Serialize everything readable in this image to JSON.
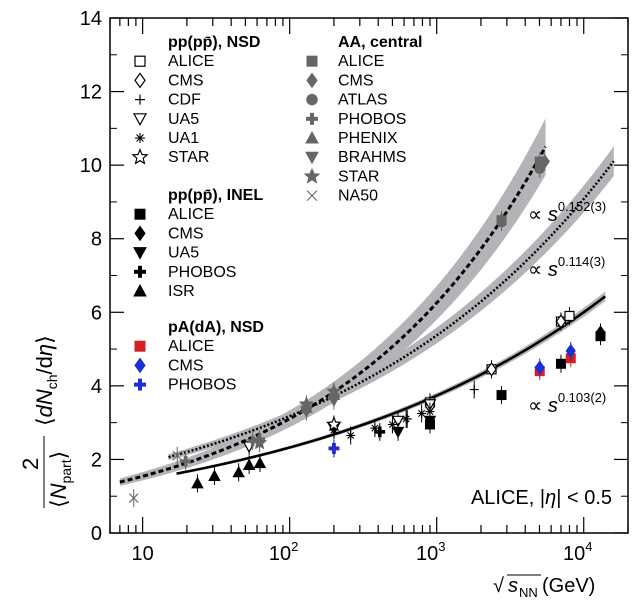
{
  "chart_data": {
    "type": "scatter",
    "x_scale": "log",
    "xlim": [
      6,
      20000
    ],
    "ylim": [
      0,
      14
    ],
    "x_ticks": [
      10,
      100,
      1000,
      10000
    ],
    "x_tick_labels": [
      {
        "base": "10",
        "exp": ""
      },
      {
        "base": "10",
        "exp": "2"
      },
      {
        "base": "10",
        "exp": "3"
      },
      {
        "base": "10",
        "exp": "4"
      }
    ],
    "y_ticks": [
      0,
      2,
      4,
      6,
      8,
      10,
      12,
      14
    ],
    "y_tick_labels": [
      "0",
      "2",
      "4",
      "6",
      "8",
      "10",
      "12",
      "14"
    ],
    "xlabel": {
      "prefix": "√",
      "var": "s",
      "sub": "NN",
      "unit": " (GeV)"
    },
    "ylabel": {
      "frac_num": "2",
      "frac_den_var": "N",
      "frac_den_sub": "part",
      "mid": "dN",
      "mid_sub": "ch",
      "tail": "/d",
      "eta": "η"
    },
    "annotation": {
      "prefix": "ALICE, |",
      "eta": "η",
      "suffix": "| < 0.5"
    },
    "legend_groups": [
      {
        "title": "pp(pp̄), NSD",
        "entries": [
          "ALICE",
          "CMS",
          "CDF",
          "UA5",
          "UA1",
          "STAR"
        ]
      },
      {
        "title": "pp(pp̄), INEL",
        "entries": [
          "ALICE",
          "CMS",
          "UA5",
          "PHOBOS",
          "ISR"
        ]
      },
      {
        "title": "pA(dA), NSD",
        "entries": [
          "ALICE",
          "CMS",
          "PHOBOS"
        ]
      },
      {
        "title": "AA, central",
        "entries": [
          "ALICE",
          "CMS",
          "ATLAS",
          "PHOBOS",
          "PHENIX",
          "BRAHMS",
          "STAR",
          "NA50"
        ]
      }
    ],
    "fits": [
      {
        "name": "AA, central",
        "label_prefix": "∝ ",
        "var": "s",
        "exponent": "0.152(3)",
        "style": "dashed",
        "a": 0.766,
        "b": 0.304,
        "x_range": [
          7,
          5500
        ],
        "band": 0.22
      },
      {
        "name": "pp(pp̄), NSD",
        "label_prefix": "∝ ",
        "var": "s",
        "exponent": "0.114(3)",
        "style": "dotted",
        "a": 1.112,
        "b": 0.228,
        "x_range": [
          15,
          16000
        ],
        "band": 0.12
      },
      {
        "name": "pp(pp̄), INEL",
        "label_prefix": "∝ ",
        "var": "s",
        "exponent": "0.103(2)",
        "style": "solid",
        "a": 0.9,
        "b": 0.206,
        "x_range": [
          17,
          14000
        ],
        "band": 0.06
      }
    ],
    "series": [
      {
        "name": "pp NSD ALICE",
        "marker": "open-square",
        "color": "#000000",
        "points": [
          [
            900,
            3.55
          ],
          [
            2360,
            4.45
          ],
          [
            7000,
            5.75
          ],
          [
            8000,
            5.9
          ]
        ]
      },
      {
        "name": "pp NSD CMS",
        "marker": "open-diamond",
        "color": "#000000",
        "points": [
          [
            900,
            3.45
          ],
          [
            2360,
            4.45
          ],
          [
            7000,
            5.75
          ]
        ]
      },
      {
        "name": "pp NSD CDF",
        "marker": "plus-thin",
        "color": "#000000",
        "points": [
          [
            630,
            3.1
          ],
          [
            1800,
            3.9
          ]
        ]
      },
      {
        "name": "pp NSD UA5",
        "marker": "open-triangle-down",
        "color": "#000000",
        "points": [
          [
            53,
            2.35
          ],
          [
            200,
            2.85
          ],
          [
            546,
            3.05
          ],
          [
            900,
            3.5
          ]
        ]
      },
      {
        "name": "pp NSD UA1",
        "marker": "asterisk",
        "color": "#000000",
        "points": [
          [
            200,
            2.8
          ],
          [
            260,
            2.65
          ],
          [
            380,
            2.85
          ],
          [
            500,
            2.95
          ],
          [
            620,
            3.1
          ],
          [
            790,
            3.25
          ],
          [
            900,
            3.3
          ]
        ]
      },
      {
        "name": "pp NSD STAR",
        "marker": "open-star",
        "color": "#000000",
        "points": [
          [
            200,
            2.95
          ]
        ]
      },
      {
        "name": "pp INEL ALICE",
        "marker": "square",
        "color": "#000000",
        "points": [
          [
            900,
            2.95
          ],
          [
            2760,
            3.75
          ],
          [
            7000,
            4.6
          ],
          [
            13000,
            5.35
          ]
        ]
      },
      {
        "name": "pp INEL CMS",
        "marker": "diamond",
        "color": "#000000",
        "points": [
          [
            13000,
            5.45
          ]
        ]
      },
      {
        "name": "pp INEL UA5",
        "marker": "triangle-down",
        "color": "#000000",
        "points": [
          [
            546,
            2.75
          ],
          [
            900,
            3.05
          ]
        ]
      },
      {
        "name": "pp INEL PHOBOS",
        "marker": "plus-thick",
        "color": "#000000",
        "points": [
          [
            200,
            2.3
          ],
          [
            410,
            2.75
          ]
        ]
      },
      {
        "name": "pp INEL ISR",
        "marker": "triangle-up",
        "color": "#000000",
        "points": [
          [
            23.6,
            1.35
          ],
          [
            30.8,
            1.55
          ],
          [
            45,
            1.65
          ],
          [
            53,
            1.85
          ],
          [
            62.8,
            1.9
          ]
        ]
      },
      {
        "name": "pA ALICE",
        "marker": "square",
        "color": "#d42020",
        "points": [
          [
            5020,
            4.4
          ],
          [
            8160,
            4.75
          ]
        ]
      },
      {
        "name": "pA CMS",
        "marker": "diamond",
        "color": "#1a2fd6",
        "points": [
          [
            5020,
            4.5
          ],
          [
            8160,
            4.95
          ]
        ]
      },
      {
        "name": "pA PHOBOS",
        "marker": "plus-thick",
        "color": "#1a2fd6",
        "points": [
          [
            200,
            2.3
          ]
        ]
      },
      {
        "name": "AA ALICE",
        "marker": "square",
        "color": "#666666",
        "points": [
          [
            2760,
            8.5
          ],
          [
            5020,
            10.1
          ]
        ]
      },
      {
        "name": "AA CMS",
        "marker": "diamond",
        "color": "#666666",
        "points": [
          [
            2760,
            8.5
          ],
          [
            5440,
            10.1
          ]
        ]
      },
      {
        "name": "AA ATLAS",
        "marker": "circle",
        "color": "#666666",
        "points": [
          [
            2760,
            8.45
          ],
          [
            5020,
            9.9
          ]
        ]
      },
      {
        "name": "AA PHOBOS",
        "marker": "plus-thick",
        "color": "#666666",
        "points": [
          [
            19.6,
            1.95
          ],
          [
            56,
            2.5
          ],
          [
            62.4,
            2.55
          ],
          [
            130,
            3.4
          ],
          [
            200,
            3.75
          ]
        ]
      },
      {
        "name": "AA PHENIX",
        "marker": "triangle-up",
        "color": "#666666",
        "points": [
          [
            130,
            3.4
          ],
          [
            200,
            3.75
          ]
        ]
      },
      {
        "name": "AA BRAHMS",
        "marker": "triangle-down",
        "color": "#666666",
        "points": [
          [
            130,
            3.3
          ],
          [
            200,
            3.6
          ]
        ]
      },
      {
        "name": "AA STAR",
        "marker": "star",
        "color": "#666666",
        "points": [
          [
            130,
            3.5
          ],
          [
            62.4,
            2.45
          ],
          [
            200,
            3.85
          ]
        ]
      },
      {
        "name": "AA NA50",
        "marker": "cross",
        "color": "#666666",
        "points": [
          [
            8.7,
            0.95
          ],
          [
            17.2,
            2.1
          ]
        ]
      }
    ]
  }
}
